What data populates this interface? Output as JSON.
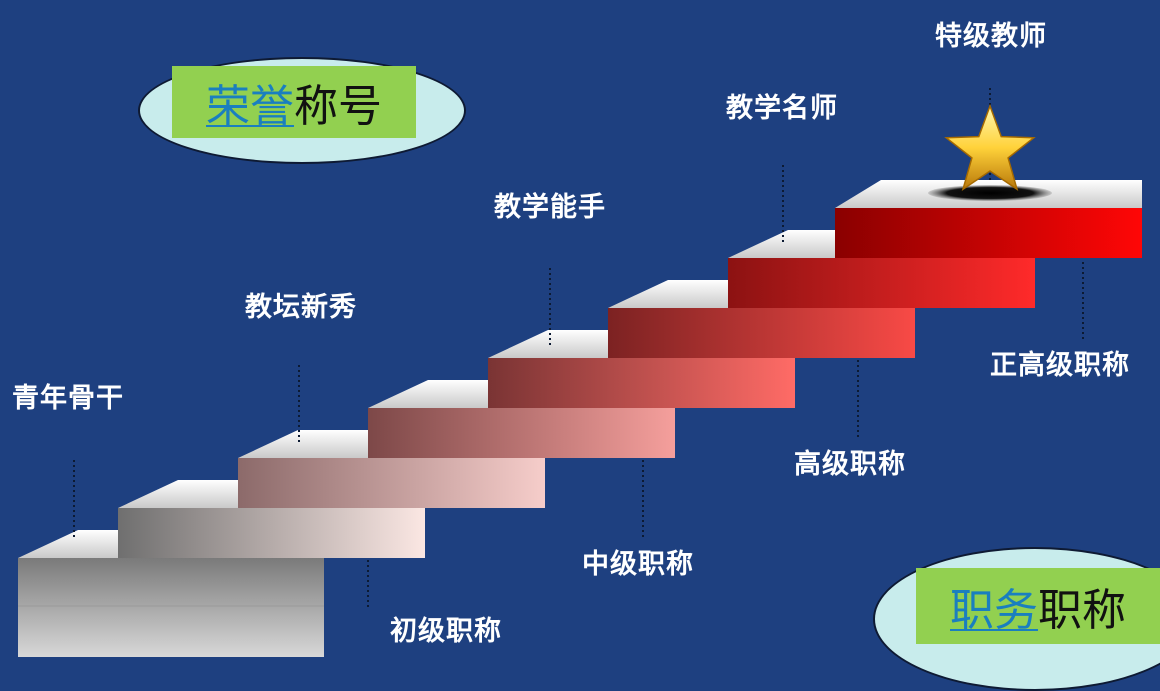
{
  "honor_badge": {
    "highlight": "荣誉",
    "rest": "称号"
  },
  "title_badge": {
    "highlight": "职务",
    "rest": "职称"
  },
  "honor_levels": [
    "青年骨干",
    "教坛新秀",
    "教学能手",
    "教学名师",
    "特级教师"
  ],
  "title_levels": [
    "初级职称",
    "中级职称",
    "高级职称",
    "正高级职称"
  ],
  "colors": {
    "background": "#1e4080",
    "badge_fill": "#92d050",
    "badge_ellipse": "#c8ecec",
    "badge_highlight_text": "#1a7fbf"
  }
}
